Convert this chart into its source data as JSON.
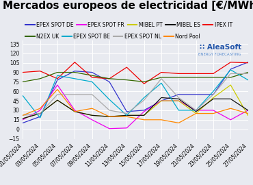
{
  "title": "Mercados europeos de electricidad [€/MWh]",
  "ylim": [
    -15,
    140
  ],
  "yticks": [
    -15,
    0,
    15,
    30,
    45,
    60,
    75,
    90,
    105,
    120,
    135
  ],
  "dates": [
    "01/05/2024",
    "03/05/2024",
    "05/05/2024",
    "07/05/2024",
    "09/05/2024",
    "11/05/2024",
    "13/05/2024",
    "15/05/2024",
    "17/05/2024",
    "19/05/2024",
    "21/05/2024",
    "23/05/2024",
    "25/05/2024",
    "27/05/2024"
  ],
  "series": {
    "EPEX SPOT DE": {
      "color": "#3333cc",
      "values": [
        10,
        20,
        78,
        92,
        90,
        75,
        28,
        30,
        45,
        55,
        55,
        55,
        95,
        106
      ]
    },
    "EPEX SPOT FR": {
      "color": "#ee00ee",
      "values": [
        15,
        30,
        70,
        30,
        15,
        1,
        2,
        28,
        45,
        45,
        30,
        30,
        15,
        30
      ]
    },
    "MIBEL PT": {
      "color": "#cccc00",
      "values": [
        17,
        25,
        46,
        28,
        22,
        20,
        22,
        22,
        45,
        45,
        25,
        50,
        70,
        22
      ]
    },
    "MIBEL ES": {
      "color": "#111111",
      "values": [
        17,
        25,
        46,
        28,
        22,
        20,
        22,
        22,
        50,
        48,
        28,
        48,
        48,
        30
      ]
    },
    "IPEX IT": {
      "color": "#ee0000",
      "values": [
        90,
        92,
        80,
        106,
        82,
        80,
        98,
        72,
        90,
        88,
        88,
        88,
        106,
        105
      ]
    },
    "N2EX UK": {
      "color": "#336600",
      "values": [
        75,
        80,
        90,
        90,
        85,
        80,
        78,
        75,
        82,
        82,
        82,
        82,
        82,
        90
      ]
    },
    "EPEX SPOT BE": {
      "color": "#00aacc",
      "values": [
        53,
        18,
        85,
        80,
        75,
        47,
        22,
        50,
        73,
        30,
        30,
        60,
        94,
        78
      ]
    },
    "EPEX SPOT NL": {
      "color": "#aaaaaa",
      "values": [
        22,
        25,
        55,
        55,
        55,
        30,
        25,
        46,
        80,
        50,
        30,
        55,
        88,
        88
      ]
    },
    "Nord Pool": {
      "color": "#ff8800",
      "values": [
        22,
        33,
        63,
        28,
        33,
        20,
        20,
        15,
        15,
        10,
        25,
        25,
        33,
        25
      ]
    }
  },
  "background_color": "#e8eaf0",
  "grid_color": "#ffffff",
  "title_color": "#000000",
  "title_fontsize": 11,
  "tick_fontsize": 5.5,
  "legend_fontsize": 5.5,
  "aleasoft_color": "#2255aa",
  "aleasoft_sub_color": "#5588cc"
}
